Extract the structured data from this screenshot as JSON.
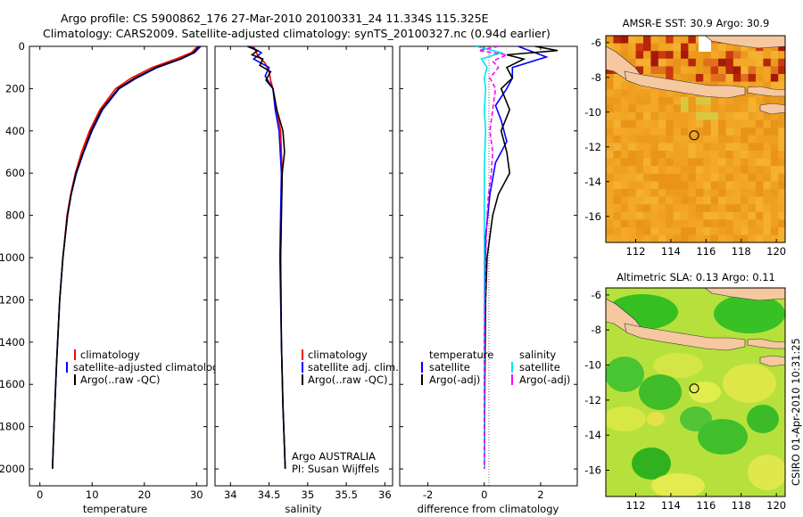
{
  "header": {
    "title_line1": "Argo profile: CS 5900862_176 27-Mar-2010 20100331_24 11.334S 115.325E",
    "title_line2": "Climatology: CARS2009. Satellite-adjusted climatology: synTS_20100327.nc (0.94d earlier)"
  },
  "colors": {
    "climatology": "#ff0000",
    "satellite": "#0000ff",
    "argo": "#000000",
    "cyan": "#00e5ee",
    "magenta": "#ff00ff"
  },
  "chart_data": [
    {
      "type": "line",
      "id": "temperature",
      "xlabel": "temperature",
      "ylabel": "",
      "xlim": [
        -2,
        32
      ],
      "ylim": [
        2080,
        0
      ],
      "xticks": [
        0,
        10,
        20,
        30
      ],
      "yticks": [
        0,
        200,
        400,
        600,
        800,
        1000,
        1200,
        1400,
        1600,
        1800,
        2000
      ],
      "legend": {
        "position": "bottom-left",
        "entries": [
          "climatology",
          "satellite-adjusted climatology",
          "Argo(..raw -QC)"
        ]
      },
      "series": [
        {
          "name": "climatology",
          "color": "#ff0000",
          "depth": [
            0,
            30,
            60,
            100,
            150,
            200,
            300,
            400,
            500,
            600,
            700,
            800,
            1000,
            1200,
            1500,
            1800,
            2000
          ],
          "values": [
            30.2,
            29.0,
            26.0,
            21.5,
            17.5,
            14.5,
            11.5,
            9.5,
            8.0,
            6.8,
            5.9,
            5.2,
            4.4,
            3.8,
            3.2,
            2.7,
            2.4
          ]
        },
        {
          "name": "satellite-adjusted climatology",
          "color": "#0000ff",
          "depth": [
            0,
            30,
            60,
            100,
            150,
            200,
            300,
            400,
            500,
            600,
            700,
            800,
            1000,
            1200,
            1500,
            1800,
            2000
          ],
          "values": [
            30.8,
            29.6,
            27.0,
            22.5,
            18.5,
            15.2,
            12.0,
            10.0,
            8.4,
            7.0,
            6.0,
            5.3,
            4.4,
            3.8,
            3.2,
            2.7,
            2.4
          ]
        },
        {
          "name": "Argo(..raw -QC)",
          "color": "#000000",
          "depth": [
            0,
            30,
            60,
            100,
            150,
            200,
            300,
            400,
            500,
            600,
            700,
            800,
            1000,
            1200,
            1500,
            1800,
            2000
          ],
          "values": [
            30.5,
            29.4,
            26.8,
            22.2,
            18.2,
            15.0,
            11.8,
            9.8,
            8.3,
            6.9,
            6.0,
            5.3,
            4.4,
            3.8,
            3.2,
            2.7,
            2.4
          ]
        }
      ]
    },
    {
      "type": "line",
      "id": "salinity",
      "xlabel": "salinity",
      "ylabel": "",
      "xlim": [
        33.8,
        36.1
      ],
      "ylim": [
        2080,
        0
      ],
      "xticks": [
        34,
        34.5,
        35,
        35.5,
        36
      ],
      "xticklabels": [
        "34",
        "34.5",
        "35",
        "35.5",
        "36"
      ],
      "legend": {
        "position": "bottom-right",
        "entries": [
          "climatology",
          "satellite adj. clim.",
          "Argo(..raw -QC)"
        ]
      },
      "annotations": [
        "Argo AUSTRALIA",
        "PI: Susan Wijffels"
      ],
      "series": [
        {
          "name": "climatology",
          "color": "#ff0000",
          "depth": [
            0,
            40,
            80,
            120,
            160,
            200,
            300,
            400,
            600,
            800,
            1000,
            1400,
            1700,
            2000
          ],
          "values": [
            34.3,
            34.35,
            34.45,
            34.5,
            34.52,
            34.55,
            34.6,
            34.65,
            34.67,
            34.66,
            34.65,
            34.66,
            34.68,
            34.71
          ]
        },
        {
          "name": "satellite adj. clim.",
          "color": "#0000ff",
          "depth": [
            0,
            30,
            60,
            100,
            140,
            200,
            300,
            400,
            600,
            800,
            1000,
            1400,
            1700,
            2000
          ],
          "values": [
            34.25,
            34.4,
            34.3,
            34.5,
            34.45,
            34.55,
            34.58,
            34.63,
            34.66,
            34.65,
            34.64,
            34.66,
            34.68,
            34.71
          ]
        },
        {
          "name": "Argo(..raw -QC)",
          "color": "#000000",
          "depth": [
            0,
            20,
            40,
            60,
            90,
            120,
            160,
            200,
            300,
            400,
            500,
            600,
            800,
            1000,
            1400,
            1700,
            2000
          ],
          "values": [
            34.22,
            34.35,
            34.28,
            34.42,
            34.38,
            34.52,
            34.46,
            34.55,
            34.6,
            34.68,
            34.7,
            34.67,
            34.66,
            34.65,
            34.66,
            34.68,
            34.71
          ]
        }
      ]
    },
    {
      "type": "line",
      "id": "difference",
      "xlabel": "difference from climatology",
      "ylabel": "",
      "xlim": [
        -3,
        3.3
      ],
      "ylim": [
        2080,
        0
      ],
      "xticks": [
        -2,
        0,
        2
      ],
      "legend": {
        "position": "bottom",
        "temperature_heading": "temperature",
        "salinity_heading": "salinity",
        "entries": [
          "satellite",
          "Argo(-adj)",
          "satellite",
          "Argo(-adj)"
        ]
      },
      "series": [
        {
          "name": "temperature satellite",
          "color": "#0000ff",
          "depth": [
            0,
            50,
            100,
            150,
            200,
            280,
            350,
            450,
            550,
            700,
            900,
            1200,
            1600,
            2000
          ],
          "values": [
            1.2,
            2.2,
            1.0,
            1.0,
            0.8,
            0.4,
            0.6,
            0.8,
            0.4,
            0.2,
            0.05,
            0.02,
            0.0,
            0.0
          ]
        },
        {
          "name": "temperature Argo(-adj)",
          "color": "#000000",
          "depth": [
            0,
            20,
            40,
            60,
            100,
            150,
            200,
            300,
            400,
            500,
            600,
            700,
            800,
            1000,
            1200,
            1600,
            2000
          ],
          "values": [
            1.8,
            2.6,
            0.8,
            1.4,
            0.8,
            1.0,
            0.6,
            0.9,
            0.6,
            0.8,
            0.9,
            0.5,
            0.3,
            0.1,
            0.05,
            0.02,
            0.0
          ]
        },
        {
          "name": "salinity satellite",
          "color": "#00e5ee",
          "depth": [
            0,
            30,
            60,
            100,
            150,
            200,
            300,
            400,
            500,
            600,
            800,
            1000,
            1400,
            2000
          ],
          "values": [
            -0.3,
            0.6,
            -0.1,
            0.1,
            0.0,
            0.05,
            0.0,
            0.05,
            0.02,
            0.0,
            0.0,
            0.0,
            0.0,
            0.0
          ]
        },
        {
          "name": "salinity Argo(-adj)",
          "color": "#ff00ff",
          "depth": [
            0,
            20,
            40,
            70,
            100,
            150,
            200,
            300,
            400,
            500,
            600,
            700,
            800,
            1000,
            1400,
            2000
          ],
          "values": [
            0.5,
            -0.2,
            0.8,
            0.3,
            0.5,
            0.2,
            0.4,
            0.3,
            0.2,
            0.3,
            0.25,
            0.15,
            0.1,
            0.05,
            0.0,
            0.0
          ]
        }
      ]
    },
    {
      "type": "heatmap",
      "id": "sst_map",
      "title": "AMSR-E SST: 30.9  Argo: 30.9",
      "sst_value": "30.9",
      "argo_value": "30.9",
      "xlim": [
        110.3,
        120.5
      ],
      "ylim": [
        -17.5,
        -5.6
      ],
      "xticks": [
        112,
        114,
        116,
        118,
        120
      ],
      "yticks": [
        -6,
        -8,
        -10,
        -12,
        -14,
        -16
      ],
      "marker": {
        "lon": 115.325,
        "lat": -11.334
      }
    },
    {
      "type": "heatmap",
      "id": "sla_map",
      "title": "Altimetric SLA: 0.13  Argo: 0.11",
      "sla_value": "0.13",
      "argo_value": "0.11",
      "xlim": [
        110.3,
        120.5
      ],
      "ylim": [
        -17.5,
        -5.6
      ],
      "xticks": [
        112,
        114,
        116,
        118,
        120
      ],
      "yticks": [
        -6,
        -8,
        -10,
        -12,
        -14,
        -16
      ],
      "marker": {
        "lon": 115.325,
        "lat": -11.334
      }
    }
  ],
  "footer": {
    "credit": "CSIRO 01-Apr-2010 10:31:25"
  }
}
